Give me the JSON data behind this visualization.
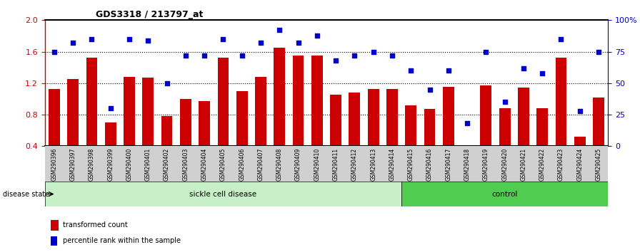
{
  "title": "GDS3318 / 213797_at",
  "samples": [
    "GSM290396",
    "GSM290397",
    "GSM290398",
    "GSM290399",
    "GSM290400",
    "GSM290401",
    "GSM290402",
    "GSM290403",
    "GSM290404",
    "GSM290405",
    "GSM290406",
    "GSM290407",
    "GSM290408",
    "GSM290409",
    "GSM290410",
    "GSM290411",
    "GSM290412",
    "GSM290413",
    "GSM290414",
    "GSM290415",
    "GSM290416",
    "GSM290417",
    "GSM290418",
    "GSM290419",
    "GSM290420",
    "GSM290421",
    "GSM290422",
    "GSM290423",
    "GSM290424",
    "GSM290425"
  ],
  "bar_values": [
    1.13,
    1.25,
    1.52,
    0.7,
    1.28,
    1.27,
    0.78,
    1.0,
    0.97,
    1.52,
    1.1,
    1.28,
    1.65,
    1.55,
    1.55,
    1.05,
    1.08,
    1.13,
    1.13,
    0.92,
    0.87,
    1.15,
    0.4,
    1.17,
    0.88,
    1.14,
    0.88,
    1.52,
    0.52,
    1.02
  ],
  "percentile_values": [
    75,
    82,
    85,
    30,
    85,
    84,
    50,
    72,
    72,
    85,
    72,
    82,
    92,
    82,
    88,
    68,
    72,
    75,
    72,
    60,
    45,
    60,
    18,
    75,
    35,
    62,
    58,
    85,
    28,
    75
  ],
  "sickle_count": 19,
  "control_count": 11,
  "ylim_left": [
    0.4,
    2.0
  ],
  "ylim_right": [
    0,
    100
  ],
  "yticks_left": [
    0.4,
    0.8,
    1.2,
    1.6,
    2.0
  ],
  "yticks_right": [
    0,
    25,
    50,
    75,
    100
  ],
  "ytick_labels_right": [
    "0",
    "25",
    "50",
    "75",
    "100%"
  ],
  "bar_color": "#cc0000",
  "dot_color": "#0000cc",
  "grid_color": "#000000",
  "sickle_label": "sickle cell disease",
  "control_label": "control",
  "disease_state_label": "disease state",
  "legend_bar_label": "transformed count",
  "legend_dot_label": "percentile rank within the sample",
  "sickle_bg": "#c8f0c8",
  "control_bg": "#50cc50",
  "xlabel_area_bg": "#d0d0d0"
}
